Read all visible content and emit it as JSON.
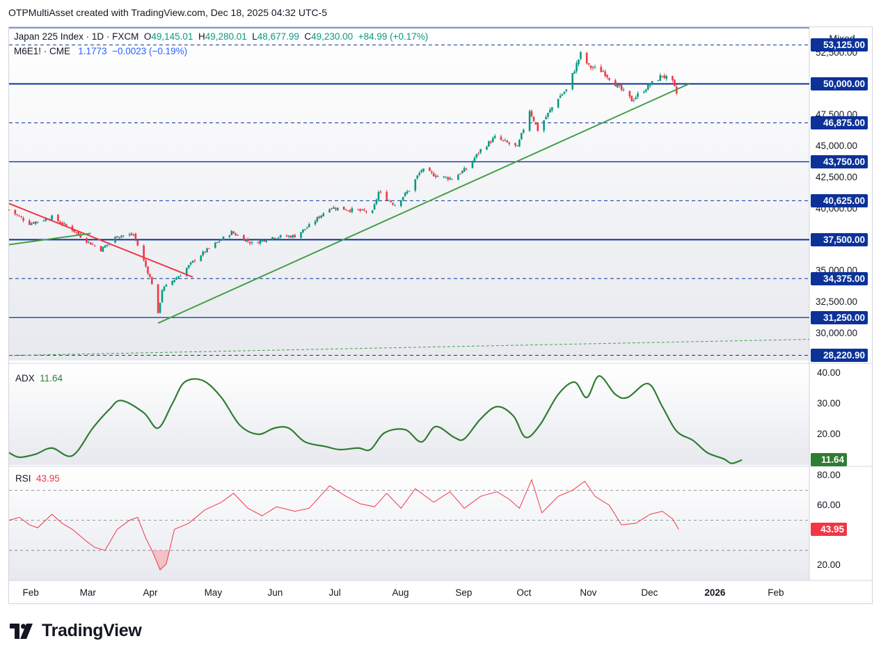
{
  "attribution": "OTPMultiAsset created with TradingView.com, Dec 18, 2025 04:32 UTC-5",
  "legend": {
    "symbol": "Japan 225 Index · 1D · FXCM",
    "o_label": "O",
    "o_value": "49,145.01",
    "h_label": "H",
    "h_value": "49,280.01",
    "l_label": "L",
    "l_value": "48,677.99",
    "c_label": "C",
    "c_value": "49,230.00",
    "change": "+84.99 (+0.17%)",
    "compare_symbol": "M6E1! · CME",
    "compare_value": "1.1773",
    "compare_change": "−0.0023 (−0.19%)"
  },
  "scale_mode": "Mixed",
  "colors": {
    "up": "#089981",
    "down": "#f23645",
    "level": "#0c3299",
    "trend_green": "#43a047",
    "trend_red": "#f23645",
    "adx": "#2e7d32",
    "rsi": "#f23645",
    "rsi_fill": "#f7a1a8",
    "brand_blue": "#2962ff"
  },
  "price_axis": {
    "ticks": [
      "52,500.00",
      "47,500.00",
      "45,000.00",
      "42,500.00",
      "40,000.00",
      "35,000.00",
      "32,500.00",
      "30,000.00"
    ],
    "levels": [
      {
        "value": 53125,
        "label": "53,125.00",
        "style": "dashed"
      },
      {
        "value": 50000,
        "label": "50,000.00",
        "style": "solid"
      },
      {
        "value": 46875,
        "label": "46,875.00",
        "style": "dashed"
      },
      {
        "value": 43750,
        "label": "43,750.00",
        "style": "solid"
      },
      {
        "value": 40625,
        "label": "40,625.00",
        "style": "dashed"
      },
      {
        "value": 37500,
        "label": "37,500.00",
        "style": "solid"
      },
      {
        "value": 34375,
        "label": "34,375.00",
        "style": "dashed"
      },
      {
        "value": 31250,
        "label": "31,250.00",
        "style": "solid"
      },
      {
        "value": 28220.9,
        "label": "28,220.90",
        "style": "dashed"
      }
    ]
  },
  "time_axis": [
    "Feb",
    "Mar",
    "Apr",
    "May",
    "Jun",
    "Jul",
    "Aug",
    "Sep",
    "Oct",
    "Nov",
    "Dec",
    "2026",
    "Feb"
  ],
  "adx": {
    "name": "ADX",
    "value": "11.64",
    "ticks": [
      "40.00",
      "30.00",
      "20.00"
    ]
  },
  "rsi": {
    "name": "RSI",
    "value": "43.95",
    "ticks": [
      "80.00",
      "60.00",
      "20.00"
    ],
    "bands": [
      70,
      50,
      30
    ]
  },
  "brand": "TradingView",
  "chart_data": [
    {
      "type": "candlestick",
      "title": "Japan 225 Index · 1D · FXCM",
      "x_range": [
        "2025-01-24",
        "2026-02-20"
      ],
      "ylim": [
        27800,
        54500
      ],
      "close_anchors": [
        [
          "2025-01-24",
          39900
        ],
        [
          "2025-02-03",
          38800
        ],
        [
          "2025-02-14",
          39300
        ],
        [
          "2025-02-24",
          38300
        ],
        [
          "2025-03-03",
          37400
        ],
        [
          "2025-03-10",
          36700
        ],
        [
          "2025-03-18",
          37800
        ],
        [
          "2025-03-26",
          37900
        ],
        [
          "2025-03-31",
          35800
        ],
        [
          "2025-04-04",
          34000
        ],
        [
          "2025-04-07",
          31500
        ],
        [
          "2025-04-09",
          33500
        ],
        [
          "2025-04-11",
          33800
        ],
        [
          "2025-04-18",
          34700
        ],
        [
          "2025-04-25",
          35900
        ],
        [
          "2025-05-02",
          36800
        ],
        [
          "2025-05-13",
          38100
        ],
        [
          "2025-05-23",
          37200
        ],
        [
          "2025-06-02",
          37700
        ],
        [
          "2025-06-13",
          37800
        ],
        [
          "2025-06-20",
          38600
        ],
        [
          "2025-06-30",
          40100
        ],
        [
          "2025-07-10",
          39900
        ],
        [
          "2025-07-21",
          39700
        ],
        [
          "2025-07-24",
          41300
        ],
        [
          "2025-08-01",
          40300
        ],
        [
          "2025-08-08",
          41500
        ],
        [
          "2025-08-14",
          43100
        ],
        [
          "2025-08-22",
          42600
        ],
        [
          "2025-08-29",
          42400
        ],
        [
          "2025-09-05",
          43200
        ],
        [
          "2025-09-12",
          44700
        ],
        [
          "2025-09-19",
          45700
        ],
        [
          "2025-09-30",
          44900
        ],
        [
          "2025-10-06",
          47900
        ],
        [
          "2025-10-10",
          46300
        ],
        [
          "2025-10-20",
          48900
        ],
        [
          "2025-10-24",
          49500
        ],
        [
          "2025-10-31",
          52400
        ],
        [
          "2025-11-04",
          51400
        ],
        [
          "2025-11-11",
          51000
        ],
        [
          "2025-11-20",
          49500
        ],
        [
          "2025-11-25",
          48700
        ],
        [
          "2025-12-03",
          49800
        ],
        [
          "2025-12-10",
          50700
        ],
        [
          "2025-12-15",
          50100
        ],
        [
          "2025-12-17",
          49230
        ]
      ],
      "lines": [
        {
          "name": "",
          "from": [
            "2025-01-24",
            40400
          ],
          "to": [
            "2025-04-24",
            34500
          ],
          "color": "red"
        },
        {
          "name": "",
          "from": [
            "2025-01-24",
            37100
          ],
          "to": [
            "2025-03-05",
            38000
          ],
          "color": "green"
        },
        {
          "name": "",
          "from": [
            "2025-04-07",
            30800
          ],
          "to": [
            "2025-12-23",
            50000
          ],
          "color": "green"
        },
        {
          "name": "",
          "from": [
            "2025-01-24",
            28200
          ],
          "to": [
            "2026-02-20",
            29500
          ],
          "color": "green",
          "dashed": true
        }
      ]
    },
    {
      "type": "line",
      "title": "ADX",
      "ylim": [
        10,
        42
      ],
      "points": [
        [
          "2025-01-24",
          14
        ],
        [
          "2025-01-29",
          12.5
        ],
        [
          "2025-02-06",
          13.5
        ],
        [
          "2025-02-14",
          15.5
        ],
        [
          "2025-02-24",
          13
        ],
        [
          "2025-03-06",
          22
        ],
        [
          "2025-03-14",
          28
        ],
        [
          "2025-03-20",
          31
        ],
        [
          "2025-03-31",
          27
        ],
        [
          "2025-04-07",
          22
        ],
        [
          "2025-04-14",
          30
        ],
        [
          "2025-04-20",
          37
        ],
        [
          "2025-04-29",
          37.5
        ],
        [
          "2025-05-08",
          32
        ],
        [
          "2025-05-17",
          23
        ],
        [
          "2025-05-26",
          20
        ],
        [
          "2025-06-03",
          22
        ],
        [
          "2025-06-10",
          22
        ],
        [
          "2025-06-18",
          17.5
        ],
        [
          "2025-06-28",
          16
        ],
        [
          "2025-07-05",
          15
        ],
        [
          "2025-07-14",
          15.5
        ],
        [
          "2025-07-20",
          15
        ],
        [
          "2025-07-27",
          20.5
        ],
        [
          "2025-08-06",
          21.5
        ],
        [
          "2025-08-14",
          17.5
        ],
        [
          "2025-08-21",
          22.5
        ],
        [
          "2025-08-30",
          19
        ],
        [
          "2025-09-04",
          18.5
        ],
        [
          "2025-09-12",
          25
        ],
        [
          "2025-09-20",
          29
        ],
        [
          "2025-09-28",
          26
        ],
        [
          "2025-10-04",
          19
        ],
        [
          "2025-10-11",
          23
        ],
        [
          "2025-10-20",
          33
        ],
        [
          "2025-10-28",
          37
        ],
        [
          "2025-11-03",
          32
        ],
        [
          "2025-11-09",
          39
        ],
        [
          "2025-11-17",
          33
        ],
        [
          "2025-11-23",
          32
        ],
        [
          "2025-12-03",
          36.5
        ],
        [
          "2025-12-10",
          29
        ],
        [
          "2025-12-17",
          21
        ],
        [
          "2025-12-25",
          18
        ],
        [
          "2026-01-01",
          14
        ],
        [
          "2026-01-09",
          12
        ],
        [
          "2026-01-13",
          10.5
        ],
        [
          "2026-01-18",
          11.64
        ]
      ]
    },
    {
      "type": "line",
      "title": "RSI",
      "ylim": [
        10,
        85
      ],
      "points": [
        [
          "2025-01-24",
          50
        ],
        [
          "2025-01-29",
          52
        ],
        [
          "2025-02-03",
          47
        ],
        [
          "2025-02-07",
          45
        ],
        [
          "2025-02-14",
          54
        ],
        [
          "2025-02-19",
          48
        ],
        [
          "2025-02-24",
          44
        ],
        [
          "2025-03-03",
          36
        ],
        [
          "2025-03-07",
          32
        ],
        [
          "2025-03-12",
          30
        ],
        [
          "2025-03-18",
          44
        ],
        [
          "2025-03-24",
          50
        ],
        [
          "2025-03-28",
          52
        ],
        [
          "2025-04-01",
          38
        ],
        [
          "2025-04-04",
          30
        ],
        [
          "2025-04-08",
          17
        ],
        [
          "2025-04-11",
          21
        ],
        [
          "2025-04-15",
          44
        ],
        [
          "2025-04-22",
          48
        ],
        [
          "2025-04-30",
          57
        ],
        [
          "2025-05-08",
          62
        ],
        [
          "2025-05-14",
          68
        ],
        [
          "2025-05-21",
          58
        ],
        [
          "2025-05-28",
          53
        ],
        [
          "2025-06-04",
          59
        ],
        [
          "2025-06-13",
          56
        ],
        [
          "2025-06-20",
          58
        ],
        [
          "2025-06-30",
          73
        ],
        [
          "2025-07-08",
          66
        ],
        [
          "2025-07-15",
          61
        ],
        [
          "2025-07-22",
          59
        ],
        [
          "2025-07-28",
          68
        ],
        [
          "2025-08-04",
          58
        ],
        [
          "2025-08-11",
          71
        ],
        [
          "2025-08-20",
          62
        ],
        [
          "2025-08-28",
          69
        ],
        [
          "2025-09-04",
          58
        ],
        [
          "2025-09-12",
          66
        ],
        [
          "2025-09-20",
          69
        ],
        [
          "2025-09-26",
          64
        ],
        [
          "2025-10-01",
          58
        ],
        [
          "2025-10-07",
          77
        ],
        [
          "2025-10-12",
          55
        ],
        [
          "2025-10-20",
          66
        ],
        [
          "2025-10-27",
          70
        ],
        [
          "2025-11-02",
          76
        ],
        [
          "2025-11-07",
          66
        ],
        [
          "2025-11-14",
          60
        ],
        [
          "2025-11-20",
          47
        ],
        [
          "2025-11-27",
          48
        ],
        [
          "2025-12-04",
          54
        ],
        [
          "2025-12-10",
          56
        ],
        [
          "2025-12-15",
          51
        ],
        [
          "2025-12-18",
          43.95
        ]
      ]
    }
  ]
}
